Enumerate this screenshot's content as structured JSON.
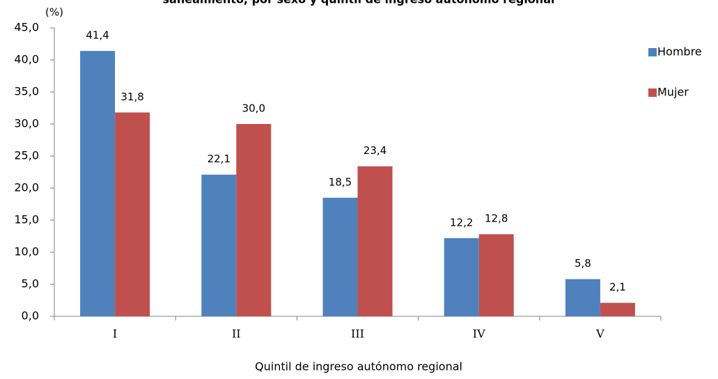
{
  "chart_data": {
    "type": "bar",
    "title": "saneamiento, por sexo y quintil de ingreso autónomo regional",
    "y_unit": "(%)",
    "x_label": "Quintil de ingreso autónomo regional",
    "categories": [
      "I",
      "II",
      "III",
      "IV",
      "V"
    ],
    "series": [
      {
        "name": "Hombre",
        "color": "#4f81bd",
        "values": [
          41.4,
          22.1,
          18.5,
          12.2,
          5.8
        ],
        "value_labels": [
          "41,4",
          "22,1",
          "18,5",
          "12,2",
          "5,8"
        ]
      },
      {
        "name": "Mujer",
        "color": "#c0504d",
        "values": [
          31.8,
          30.0,
          23.4,
          12.8,
          2.1
        ],
        "value_labels": [
          "31,8",
          "30,0",
          "23,4",
          "12,8",
          "2,1"
        ]
      }
    ],
    "ylim": [
      0,
      45
    ],
    "yticks": [
      {
        "value": 0,
        "label": "0,0"
      },
      {
        "value": 5,
        "label": "5,0"
      },
      {
        "value": 10,
        "label": "10,0"
      },
      {
        "value": 15,
        "label": "15,0"
      },
      {
        "value": 20,
        "label": "20,0"
      },
      {
        "value": 25,
        "label": "25,0"
      },
      {
        "value": 30,
        "label": "30,0"
      },
      {
        "value": 35,
        "label": "35,0"
      },
      {
        "value": 40,
        "label": "40,0"
      },
      {
        "value": 45,
        "label": "45,0"
      }
    ],
    "grid": false,
    "legend": "right"
  }
}
